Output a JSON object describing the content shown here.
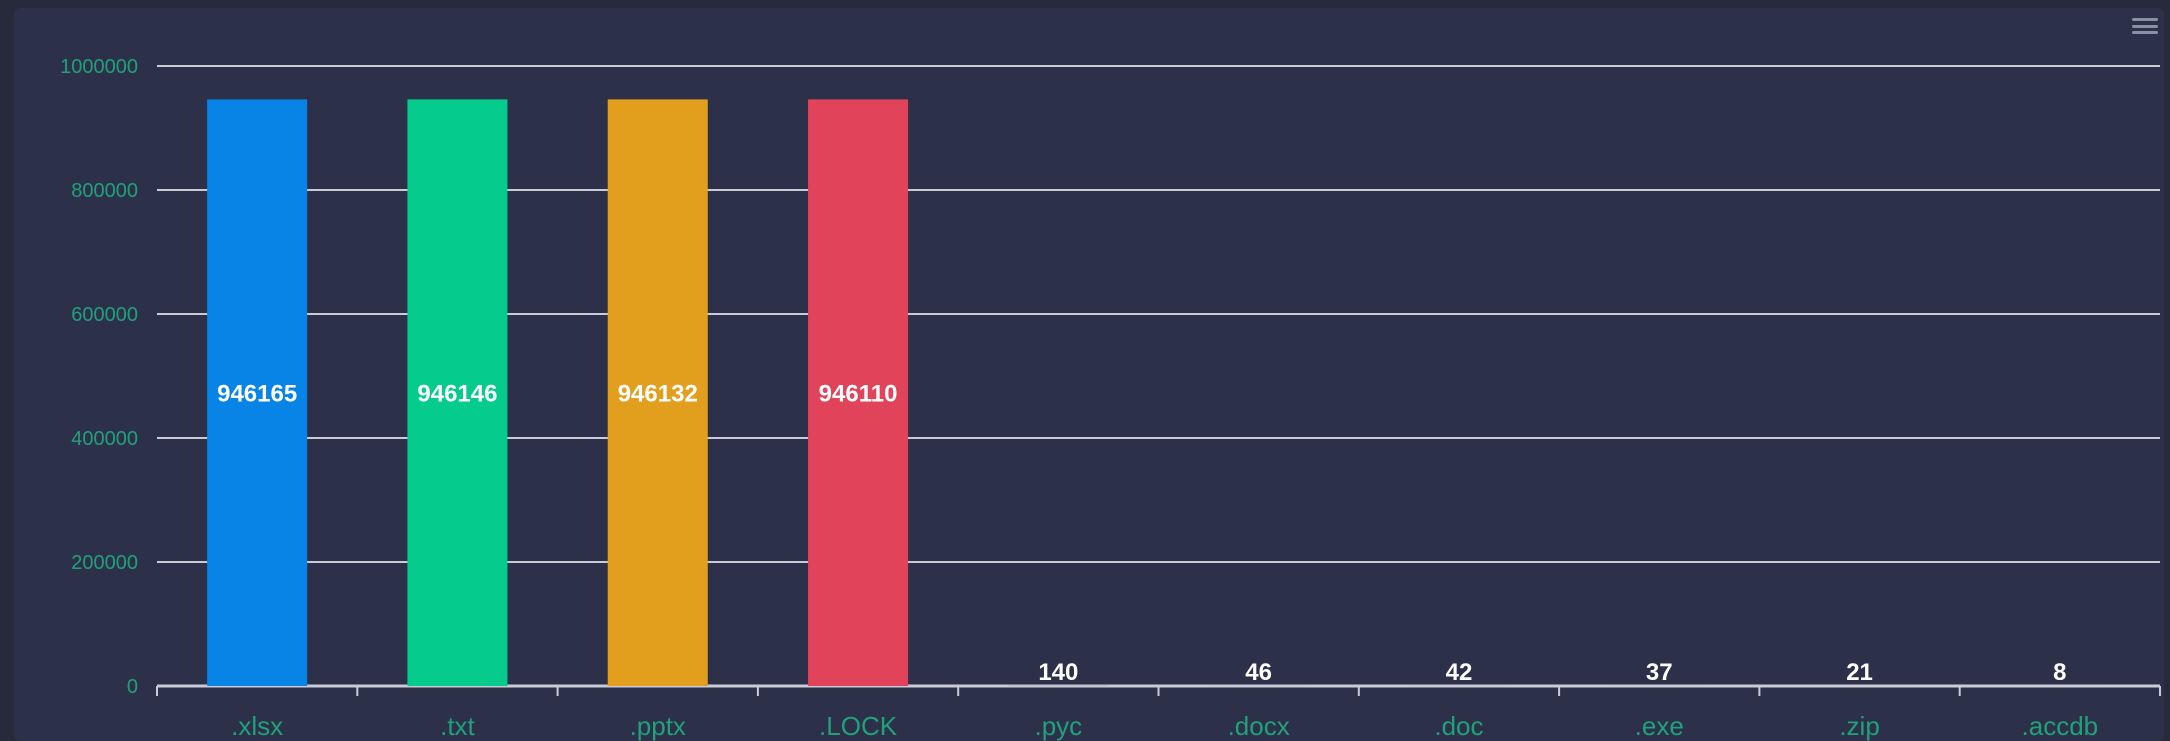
{
  "chart_data": {
    "type": "bar",
    "categories": [
      ".xlsx",
      ".txt",
      ".pptx",
      ".LOCK",
      ".pyc",
      ".docx",
      ".doc",
      ".exe",
      ".zip",
      ".accdb"
    ],
    "values": [
      946165,
      946146,
      946132,
      946110,
      140,
      46,
      42,
      37,
      21,
      8
    ],
    "colors": [
      "#0784e6",
      "#05cc8c",
      "#e29f1e",
      "#e1435a",
      "#2c3149",
      "#2c3149",
      "#2c3149",
      "#2c3149",
      "#2c3149",
      "#2c3149"
    ],
    "ylim": [
      0,
      1000000
    ],
    "yticks": [
      "0",
      "200000",
      "400000",
      "600000",
      "800000",
      "1000000"
    ],
    "grid": true,
    "title": "",
    "xlabel": "",
    "ylabel": ""
  },
  "menu_icon": "hamburger-menu-icon"
}
